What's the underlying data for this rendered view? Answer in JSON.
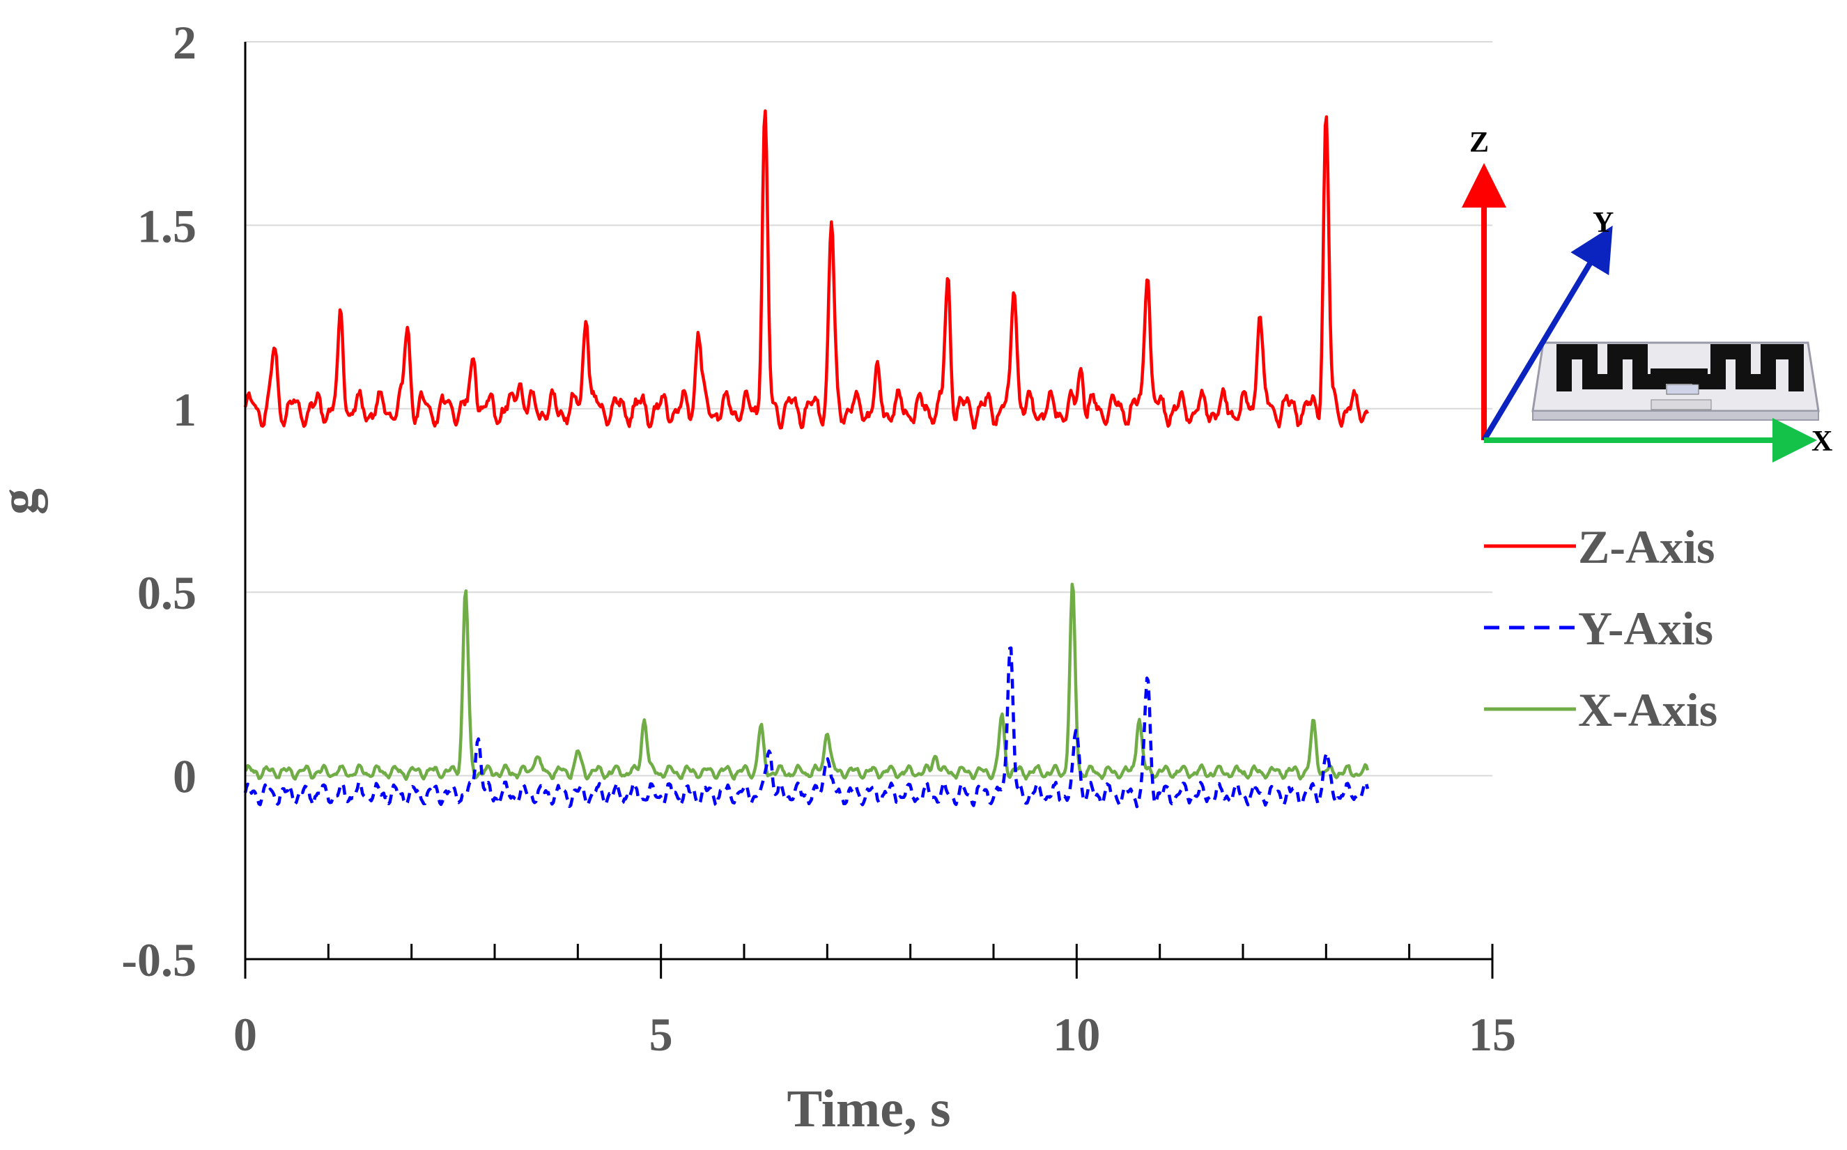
{
  "chart_data": {
    "type": "line",
    "title": "",
    "xlabel": "Time, s",
    "ylabel": "g",
    "xlim": [
      0,
      15
    ],
    "ylim": [
      -0.5,
      2
    ],
    "x_ticks": [
      0,
      5,
      10,
      15
    ],
    "x_tick_labels": [
      "0",
      "5",
      "10",
      "15"
    ],
    "y_ticks": [
      -0.5,
      0,
      0.5,
      1,
      1.5,
      2
    ],
    "y_tick_labels": [
      "-0.5",
      "0",
      "0.5",
      "1",
      "1.5",
      "2"
    ],
    "grid": "horizontal",
    "legend_position": "right",
    "series": [
      {
        "name": "Z-Axis",
        "color": "#ff0000",
        "style": "solid",
        "x_range": [
          0,
          13.5
        ],
        "peaks": [
          [
            0.35,
            1.16
          ],
          [
            1.15,
            1.24
          ],
          [
            1.95,
            1.23
          ],
          [
            2.75,
            1.15
          ],
          [
            3.3,
            1.09
          ],
          [
            4.1,
            1.28
          ],
          [
            5.45,
            1.22
          ],
          [
            6.25,
            1.8
          ],
          [
            7.05,
            1.51
          ],
          [
            7.6,
            1.08
          ],
          [
            8.45,
            1.35
          ],
          [
            9.25,
            1.35
          ],
          [
            10.05,
            1.12
          ],
          [
            10.85,
            1.41
          ],
          [
            12.2,
            1.28
          ],
          [
            13.0,
            1.8
          ]
        ],
        "baseline": 1.0
      },
      {
        "name": "Y-Axis",
        "color": "#0000ff",
        "style": "dashed",
        "x_range": [
          0,
          13.5
        ],
        "peaks": [
          [
            2.8,
            0.12
          ],
          [
            6.3,
            0.09
          ],
          [
            7.0,
            0.07
          ],
          [
            9.2,
            0.38
          ],
          [
            10.0,
            0.13
          ],
          [
            10.85,
            0.26
          ],
          [
            13.0,
            0.06
          ]
        ],
        "baseline": -0.05
      },
      {
        "name": "X-Axis",
        "color": "#70ad47",
        "style": "solid",
        "x_range": [
          0,
          13.5
        ],
        "peaks": [
          [
            2.65,
            0.51
          ],
          [
            3.5,
            0.06
          ],
          [
            4.0,
            0.06
          ],
          [
            4.8,
            0.16
          ],
          [
            6.2,
            0.13
          ],
          [
            7.0,
            0.13
          ],
          [
            8.3,
            0.06
          ],
          [
            9.1,
            0.16
          ],
          [
            9.95,
            0.51
          ],
          [
            10.75,
            0.16
          ],
          [
            12.85,
            0.14
          ]
        ],
        "baseline": 0.01
      }
    ]
  },
  "legend": {
    "items": [
      {
        "label": "Z-Axis",
        "color": "#ff0000",
        "style": "solid"
      },
      {
        "label": "Y-Axis",
        "color": "#0000ff",
        "style": "dashed"
      },
      {
        "label": "X-Axis",
        "color": "#70ad47",
        "style": "solid"
      }
    ]
  },
  "inset": {
    "axis_z_label": "Z",
    "axis_y_label": "Y",
    "axis_x_label": "X",
    "colors": {
      "z": "#ff0000",
      "y": "#0b24c0",
      "x": "#14c24a"
    }
  }
}
